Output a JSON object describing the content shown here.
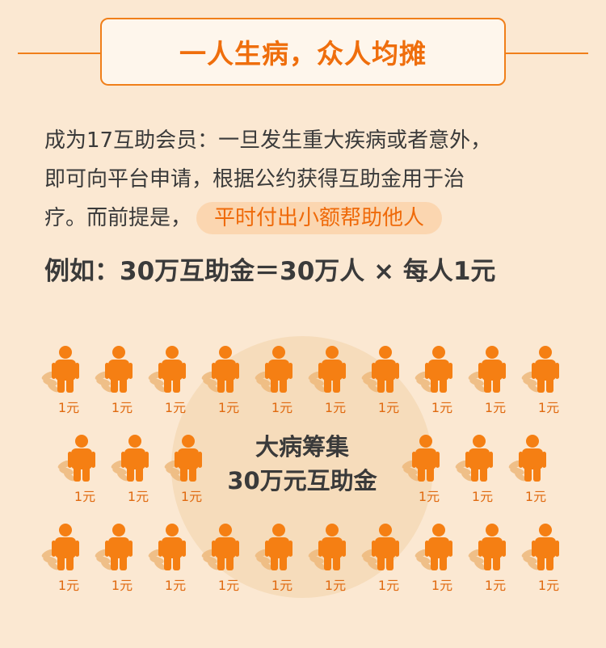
{
  "title": "一人生病，众人均摊",
  "intro": {
    "line1": "成为17互助会员：一旦发生重大疾病或者意外，",
    "line2": "即可向平台申请，根据公约获得互助金用于治",
    "line3": "疗。而前提是，",
    "highlight": "平时付出小额帮助他人"
  },
  "example": "例如：30万互助金＝30万人 × 每人1元",
  "center": {
    "line1": "大病筹集",
    "line2": "30万元互助金"
  },
  "person_label": "1元",
  "colors": {
    "accent": "#f07f1a",
    "figure": "#f57f13",
    "background": "#fbe8d2",
    "circle": "#f6dcbb"
  },
  "figure_icon": "person-icon"
}
